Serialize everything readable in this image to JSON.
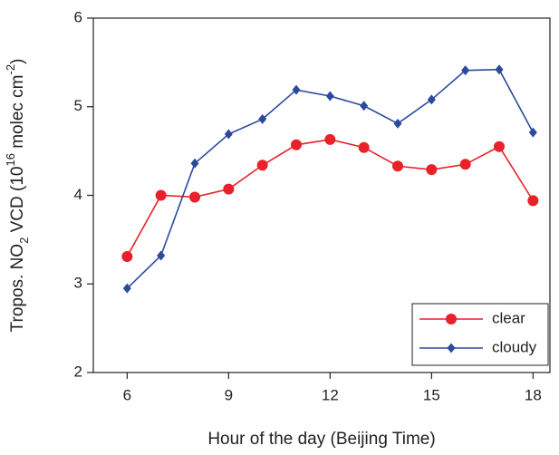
{
  "chart_data": {
    "type": "line",
    "xlabel": "Hour of the day (Beijing Time)",
    "ylabel": [
      "Tropos. NO",
      "2",
      " VCD (10",
      "16",
      " molec cm",
      "-2",
      ")"
    ],
    "x": [
      6,
      7,
      8,
      9,
      10,
      11,
      12,
      13,
      14,
      15,
      16,
      17,
      18
    ],
    "series": [
      {
        "name": "clear",
        "color": "#e8212a",
        "marker": "circle",
        "values": [
          3.31,
          4.0,
          3.98,
          4.07,
          4.34,
          4.57,
          4.63,
          4.54,
          4.33,
          4.29,
          4.35,
          4.55,
          3.94
        ]
      },
      {
        "name": "cloudy",
        "color": "#2b4a9b",
        "marker": "diamond",
        "values": [
          2.95,
          3.32,
          4.36,
          4.69,
          4.86,
          5.19,
          5.12,
          5.01,
          4.81,
          5.08,
          5.41,
          5.42,
          4.71
        ]
      }
    ],
    "xlim": [
      5,
      18.5
    ],
    "xticks": [
      6,
      9,
      12,
      15,
      18
    ],
    "ylim": [
      2,
      6
    ],
    "yticks": [
      2,
      3,
      4,
      5,
      6
    ],
    "legend": "lower right"
  }
}
